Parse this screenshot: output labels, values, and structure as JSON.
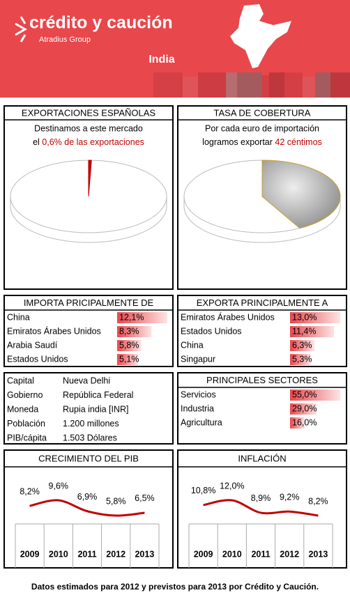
{
  "header": {
    "brand": "crédito y caución",
    "group": "Atradius Group",
    "country": "India"
  },
  "exports_share": {
    "title": "EXPORTACIONES ESPAÑOLAS",
    "line1": "Destinamos a este mercado",
    "line2_prefix": "el",
    "line2_highlight": "0,6% de las exportaciones",
    "value": 0.6
  },
  "coverage": {
    "title": "TASA DE COBERTURA",
    "line1": "Por cada euro de importación",
    "line2_prefix": "logramos exportar",
    "line2_highlight": "42 céntimos",
    "value": 42
  },
  "imports": {
    "title": "IMPORTA PRICIPALMENTE DE",
    "rows": [
      {
        "name": "China",
        "value": 12.1,
        "label": "12,1%"
      },
      {
        "name": "Emiratos Árabes Unidos",
        "value": 8.3,
        "label": "8,3%"
      },
      {
        "name": "Arabia Saudí",
        "value": 5.8,
        "label": "5,8%"
      },
      {
        "name": "Estados Unidos",
        "value": 5.1,
        "label": "5,1%"
      }
    ]
  },
  "exports": {
    "title": "EXPORTA PRINCIPALMENTE A",
    "rows": [
      {
        "name": "Emiratos Árabes Unidos",
        "value": 13.0,
        "label": "13,0%"
      },
      {
        "name": "Estados Unidos",
        "value": 11.4,
        "label": "11,4%"
      },
      {
        "name": "China",
        "value": 6.3,
        "label": "6,3%"
      },
      {
        "name": "Singapur",
        "value": 5.3,
        "label": "5,3%"
      }
    ]
  },
  "facts": {
    "rows": [
      [
        "Capital",
        "Nueva Delhi"
      ],
      [
        "Gobierno",
        "República Federal"
      ],
      [
        "Moneda",
        "Rupia india [INR]"
      ],
      [
        "Población",
        "1.200 millones"
      ],
      [
        "PIB/cápita",
        "1.503 Dólares"
      ]
    ]
  },
  "sectors": {
    "title": "PRINCIPALES SECTORES",
    "rows": [
      {
        "name": "Servicios",
        "value": 55.0,
        "label": "55,0%"
      },
      {
        "name": "Industria",
        "value": 29.0,
        "label": "29,0%"
      },
      {
        "name": "Agricultura",
        "value": 16.0,
        "label": "16,0%"
      }
    ]
  },
  "gdp": {
    "title": "CRECIMIENTO DEL PIB",
    "years": [
      "2009",
      "2010",
      "2011",
      "2012",
      "2013"
    ],
    "values": [
      8.2,
      9.6,
      6.9,
      5.8,
      6.5
    ],
    "value_labels": [
      "8,2%",
      "9,6%",
      "6,9%",
      "5,8%",
      "6,5%"
    ]
  },
  "inflation": {
    "title": "INFLACIÓN",
    "years": [
      "2009",
      "2010",
      "2011",
      "2012",
      "2013"
    ],
    "values": [
      10.8,
      12.0,
      8.9,
      9.2,
      8.2
    ],
    "value_labels": [
      "10,8%",
      "12,0%",
      "8,9%",
      "9,2%",
      "8,2%"
    ]
  },
  "footer": "Datos estimados para 2012 y previstos para 2013 por Crédito y Caución."
}
